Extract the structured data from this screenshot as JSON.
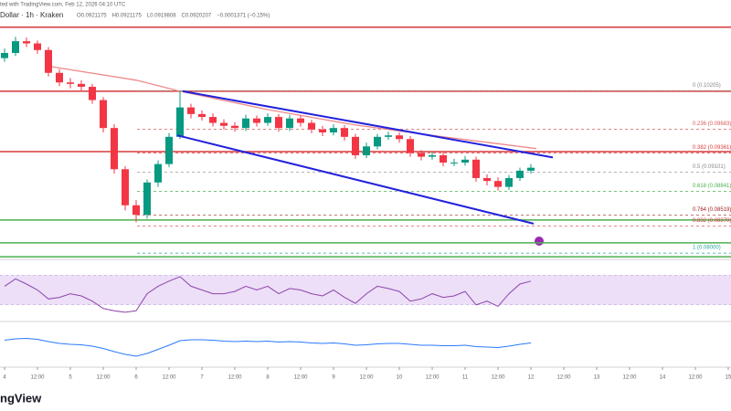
{
  "chart_data": {
    "type": "candlestick",
    "publish_note": "ted with TradingView.com, Feb 12, 2026 04:10 UTC",
    "symbol": "Dollar · 1h · Kraken",
    "ohlc_header": [
      "O0.0921175",
      "H0.0921175",
      "L0.0919808",
      "C0.0920207",
      "−0.0001371 (−0.15%)"
    ],
    "logo": "ngView",
    "up_color": "#089981",
    "down_color": "#f23645",
    "xlim": [
      -1.6667,
      265
    ],
    "ylim": [
      0.0784,
      0.1144
    ],
    "xticks": [
      {
        "value": 0,
        "label": "4"
      },
      {
        "value": 12,
        "label": "12:00"
      },
      {
        "value": 24,
        "label": "5"
      },
      {
        "value": 36,
        "label": "12:00"
      },
      {
        "value": 48,
        "label": "6"
      },
      {
        "value": 60,
        "label": "12:00"
      },
      {
        "value": 72,
        "label": "7"
      },
      {
        "value": 84,
        "label": "12:00"
      },
      {
        "value": 96,
        "label": "8"
      },
      {
        "value": 108,
        "label": "12:00"
      },
      {
        "value": 120,
        "label": "9"
      },
      {
        "value": 132,
        "label": "12:00"
      },
      {
        "value": 144,
        "label": "10"
      },
      {
        "value": 156,
        "label": "12:00"
      },
      {
        "value": 168,
        "label": "11"
      },
      {
        "value": 180,
        "label": "12:00"
      },
      {
        "value": 192,
        "label": "12"
      },
      {
        "value": 204,
        "label": "12:00"
      },
      {
        "value": 216,
        "label": "13"
      },
      {
        "value": 228,
        "label": "12:00"
      },
      {
        "value": 240,
        "label": "14"
      },
      {
        "value": 252,
        "label": "12:00"
      },
      {
        "value": 264,
        "label": "15"
      }
    ],
    "x": [
      0,
      4,
      8,
      12,
      16,
      20,
      24,
      28,
      32,
      36,
      40,
      44,
      48,
      52,
      56,
      60,
      64,
      68,
      72,
      76,
      80,
      84,
      88,
      92,
      96,
      100,
      104,
      108,
      112,
      116,
      120,
      124,
      128,
      132,
      136,
      140,
      144,
      148,
      152,
      156,
      160,
      164,
      168,
      172,
      176,
      180,
      184,
      188,
      192
    ],
    "open": [
      0.1065,
      0.1072,
      0.1088,
      0.1085,
      0.1076,
      0.1045,
      0.1032,
      0.103,
      0.1026,
      0.1008,
      0.097,
      0.0914,
      0.0865,
      0.0852,
      0.0896,
      0.0921,
      0.0958,
      0.0998,
      0.0989,
      0.0985,
      0.0977,
      0.0973,
      0.097,
      0.0983,
      0.0977,
      0.0985,
      0.097,
      0.0983,
      0.0977,
      0.0968,
      0.0964,
      0.097,
      0.0958,
      0.0933,
      0.0945,
      0.0958,
      0.096,
      0.0955,
      0.0936,
      0.0931,
      0.0933,
      0.0923,
      0.0923,
      0.0927,
      0.0902,
      0.0898,
      0.089,
      0.0902,
      0.0912
    ],
    "high": [
      0.1078,
      0.1094,
      0.1093,
      0.1089,
      0.108,
      0.105,
      0.1038,
      0.1035,
      0.103,
      0.1012,
      0.0975,
      0.0918,
      0.0872,
      0.09,
      0.0926,
      0.0963,
      0.1021,
      0.1003,
      0.0994,
      0.099,
      0.0982,
      0.0978,
      0.0988,
      0.0987,
      0.099,
      0.0989,
      0.0988,
      0.0987,
      0.0981,
      0.0973,
      0.0975,
      0.0974,
      0.0962,
      0.095,
      0.0962,
      0.0965,
      0.0964,
      0.0959,
      0.094,
      0.0938,
      0.0937,
      0.0928,
      0.0932,
      0.0931,
      0.0907,
      0.0903,
      0.0906,
      0.0916,
      0.0921
    ],
    "low": [
      0.106,
      0.1068,
      0.108,
      0.1071,
      0.104,
      0.1027,
      0.1024,
      0.1021,
      0.1003,
      0.0964,
      0.0908,
      0.0858,
      0.0842,
      0.0847,
      0.089,
      0.0917,
      0.0955,
      0.0983,
      0.098,
      0.0972,
      0.0968,
      0.0965,
      0.0966,
      0.0972,
      0.0973,
      0.0965,
      0.0966,
      0.0972,
      0.0963,
      0.0959,
      0.096,
      0.0953,
      0.0928,
      0.0929,
      0.0941,
      0.0954,
      0.095,
      0.0931,
      0.0926,
      0.0927,
      0.0918,
      0.0918,
      0.0919,
      0.0897,
      0.0892,
      0.0885,
      0.0886,
      0.0898,
      0.0908
    ],
    "close": [
      0.1072,
      0.1088,
      0.1085,
      0.1076,
      0.1045,
      0.1032,
      0.103,
      0.1026,
      0.1008,
      0.097,
      0.0914,
      0.0865,
      0.0852,
      0.0896,
      0.0921,
      0.0958,
      0.0998,
      0.0989,
      0.0985,
      0.0977,
      0.0973,
      0.097,
      0.0983,
      0.0977,
      0.0985,
      0.097,
      0.0983,
      0.0977,
      0.0968,
      0.0964,
      0.097,
      0.0958,
      0.0933,
      0.0945,
      0.0958,
      0.096,
      0.0955,
      0.0936,
      0.0931,
      0.0933,
      0.0923,
      0.0923,
      0.0927,
      0.0902,
      0.0898,
      0.089,
      0.0902,
      0.0912,
      0.0916
    ],
    "moving_average": {
      "color": "#ef8a8a",
      "x": [
        16,
        48,
        64,
        96,
        128,
        160,
        194
      ],
      "values": [
        0.1054,
        0.1035,
        0.102,
        0.0995,
        0.0974,
        0.0958,
        0.0942
      ]
    },
    "trendlines": [
      {
        "color": "#2222dd",
        "x": [
          65,
          200
        ],
        "values": [
          0.102,
          0.093
        ]
      },
      {
        "color": "#2222dd",
        "x": [
          63,
          193
        ],
        "values": [
          0.096,
          0.084
        ]
      }
    ],
    "levels": [
      {
        "color": "#d83a3a",
        "value": 0.1107
      },
      {
        "color": "#d83a3a",
        "value": 0.102
      },
      {
        "color": "#d83a3a",
        "value": 0.0938
      },
      {
        "color": "#4caf50",
        "value": 0.0845
      },
      {
        "color": "#4caf50",
        "value": 0.0814
      },
      {
        "color": "#4caf50",
        "value": 0.0795
      }
    ],
    "fib_levels": [
      {
        "label": "0 (0.10205)",
        "value": 0.10205,
        "color": "#888888"
      },
      {
        "label": "0.236 (0.09683)",
        "value": 0.09683,
        "color": "#d85a5a"
      },
      {
        "label": "0.382 (0.09361)",
        "value": 0.09361,
        "color": "#d83a3a"
      },
      {
        "label": "0.5 (0.09101)",
        "value": 0.09101,
        "color": "#888888"
      },
      {
        "label": "0.618 (0.08841)",
        "value": 0.08841,
        "color": "#4caf50"
      },
      {
        "label": "0.764 (0.08519)",
        "value": 0.08519,
        "color": "#a02020"
      },
      {
        "label": "0.832 (0.08370)",
        "value": 0.0837,
        "color": "#d83a3a"
      },
      {
        "label": "1 (0.08000)",
        "value": 0.08,
        "color": "#26a69a"
      }
    ],
    "rsi": {
      "color": "#8e44ad",
      "ylim": [
        10,
        90
      ],
      "band": [
        30,
        70
      ],
      "band_color": "#ecdff7",
      "values": [
        55,
        65,
        58,
        50,
        38,
        40,
        45,
        42,
        35,
        25,
        22,
        20,
        22,
        45,
        55,
        62,
        68,
        55,
        50,
        45,
        45,
        48,
        55,
        50,
        55,
        45,
        52,
        50,
        45,
        42,
        50,
        40,
        32,
        45,
        55,
        52,
        48,
        35,
        38,
        45,
        40,
        42,
        48,
        30,
        35,
        28,
        45,
        58,
        62
      ]
    },
    "macd": {
      "color": "#2979ff",
      "ylim": [
        -0.004,
        0.004
      ],
      "values": [
        0.0005,
        0.0008,
        0.0009,
        0.0007,
        0.0002,
        -0.0002,
        -0.0004,
        -0.0005,
        -0.0008,
        -0.0013,
        -0.002,
        -0.0026,
        -0.003,
        -0.0024,
        -0.0015,
        -0.0006,
        0.0004,
        0.0006,
        0.0006,
        0.0005,
        0.0003,
        0.0002,
        0.0003,
        0.0002,
        0.0003,
        0.0001,
        0.0002,
        0.0001,
        -0.0001,
        -0.0002,
        -0.0001,
        -0.0003,
        -0.0006,
        -0.0005,
        -0.0003,
        -0.0002,
        -0.0002,
        -0.0004,
        -0.0006,
        -0.0006,
        -0.0007,
        -0.0007,
        -0.0006,
        -0.0009,
        -0.001,
        -0.0011,
        -0.0008,
        -0.0004,
        -0.0001
      ]
    }
  }
}
